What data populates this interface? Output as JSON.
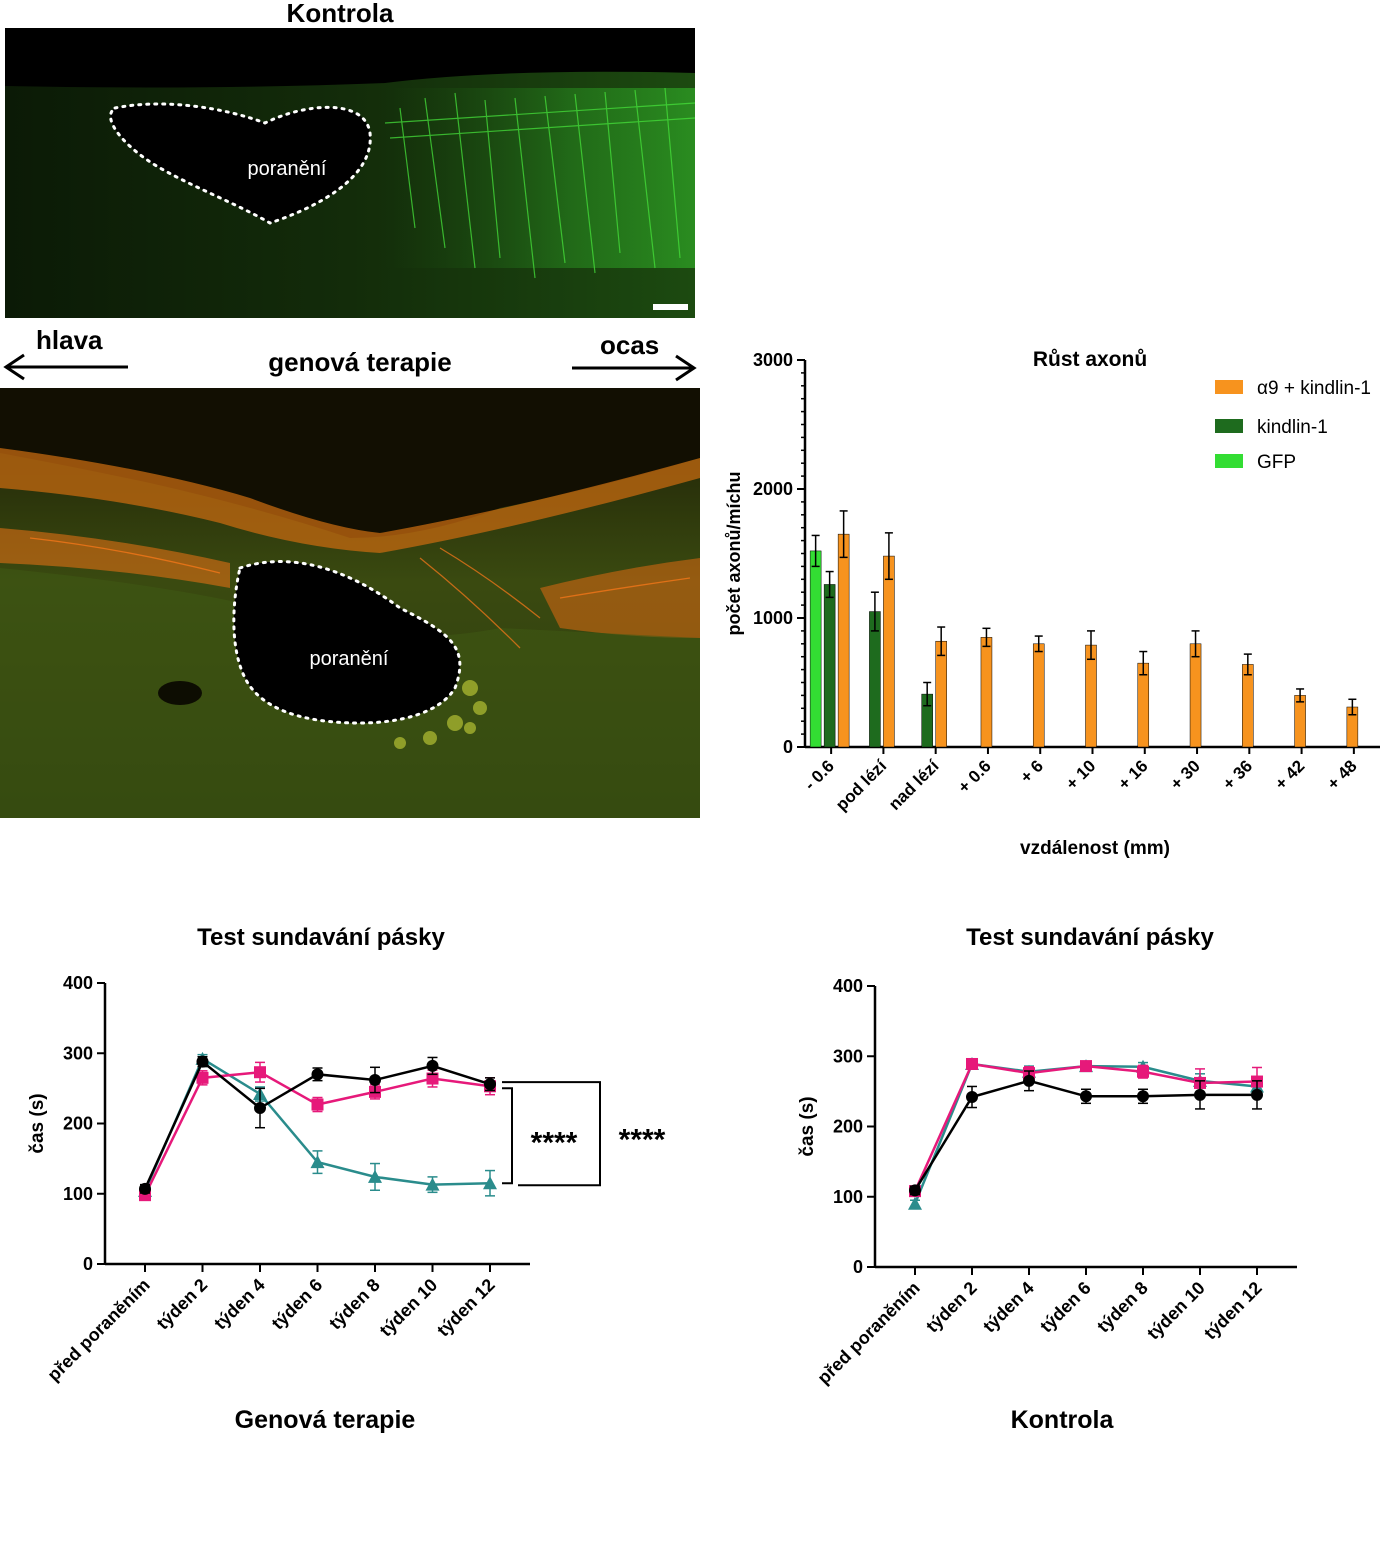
{
  "top_image": {
    "title": "Kontrola",
    "lesion_label": "poranění"
  },
  "middle_image": {
    "title": "genová terapie",
    "left_arrow_label": "hlava",
    "right_arrow_label": "ocas",
    "lesion_label": "poranění"
  },
  "colors": {
    "orange": "#F7931E",
    "dark_green": "#1E6B1E",
    "light_green": "#33DD33",
    "black": "#000000",
    "pink": "#E6197A",
    "teal": "#2A8C8C"
  },
  "chart_data": [
    {
      "type": "bar",
      "title": "Růst axonů",
      "xlabel": "vzdálenost (mm)",
      "ylabel": "počet axonů/míchu",
      "ylim": [
        0,
        3000
      ],
      "yticks": [
        "0",
        "1000",
        "2000",
        "3000"
      ],
      "categories": [
        "- 0.6",
        "pod lézí",
        "nad lézí",
        "+ 0.6",
        "+ 6",
        "+ 10",
        "+ 16",
        "+ 30",
        "+ 36",
        "+ 42",
        "+ 48"
      ],
      "legend_position": "top-right",
      "series": [
        {
          "name": "α9 + kindlin-1",
          "color": "#F7931E",
          "values": [
            1650,
            1480,
            820,
            850,
            800,
            790,
            650,
            800,
            640,
            400,
            310
          ],
          "errors": [
            180,
            180,
            110,
            70,
            60,
            110,
            90,
            100,
            80,
            50,
            60
          ]
        },
        {
          "name": "kindlin-1",
          "color": "#1E6B1E",
          "values": [
            1260,
            1050,
            410,
            null,
            null,
            null,
            null,
            null,
            null,
            null,
            null
          ],
          "errors": [
            100,
            150,
            90,
            null,
            null,
            null,
            null,
            null,
            null,
            null,
            null
          ]
        },
        {
          "name": "GFP",
          "color": "#33DD33",
          "values": [
            1520,
            null,
            null,
            null,
            null,
            null,
            null,
            null,
            null,
            null,
            null
          ],
          "errors": [
            120,
            null,
            null,
            null,
            null,
            null,
            null,
            null,
            null,
            null,
            null
          ]
        }
      ]
    },
    {
      "type": "line",
      "title": "Test sundavání pásky",
      "caption": "Genová terapie",
      "ylabel": "čas (s)",
      "ylim": [
        0,
        400
      ],
      "yticks": [
        "0",
        "100",
        "200",
        "300",
        "400"
      ],
      "categories": [
        "před poraněním",
        "týden 2",
        "týden 4",
        "týden 6",
        "týden 8",
        "týden 10",
        "týden 12"
      ],
      "significance": [
        "****",
        "****"
      ],
      "series": [
        {
          "color": "#000000",
          "marker": "circle",
          "values": [
            107,
            288,
            222,
            270,
            262,
            282,
            256
          ],
          "errors": [
            6,
            7,
            28,
            9,
            18,
            12,
            9
          ]
        },
        {
          "color": "#E6197A",
          "marker": "square",
          "values": [
            98,
            265,
            273,
            227,
            245,
            264,
            253
          ],
          "errors": [
            5,
            10,
            14,
            10,
            10,
            12,
            12
          ]
        },
        {
          "color": "#2A8C8C",
          "marker": "triangle",
          "values": [
            104,
            292,
            242,
            145,
            124,
            113,
            115
          ],
          "errors": [
            5,
            6,
            10,
            16,
            19,
            11,
            18
          ]
        }
      ]
    },
    {
      "type": "line",
      "title": "Test sundavání pásky",
      "caption": "Kontrola",
      "ylabel": "čas (s)",
      "ylim": [
        0,
        400
      ],
      "yticks": [
        "0",
        "100",
        "200",
        "300",
        "400"
      ],
      "categories": [
        "před poraněním",
        "týden 2",
        "týden 4",
        "týden 6",
        "týden 8",
        "týden 10",
        "týden 12"
      ],
      "series": [
        {
          "color": "#000000",
          "marker": "circle",
          "values": [
            109,
            242,
            265,
            243,
            243,
            245,
            245
          ],
          "errors": [
            6,
            15,
            14,
            10,
            10,
            20,
            20
          ]
        },
        {
          "color": "#E6197A",
          "marker": "square",
          "values": [
            108,
            289,
            276,
            286,
            278,
            262,
            264
          ],
          "errors": [
            5,
            5,
            9,
            6,
            9,
            20,
            20
          ]
        },
        {
          "color": "#2A8C8C",
          "marker": "triangle",
          "values": [
            90,
            289,
            278,
            286,
            285,
            265,
            257
          ],
          "errors": [
            5,
            6,
            8,
            6,
            6,
            10,
            10
          ]
        }
      ]
    }
  ]
}
